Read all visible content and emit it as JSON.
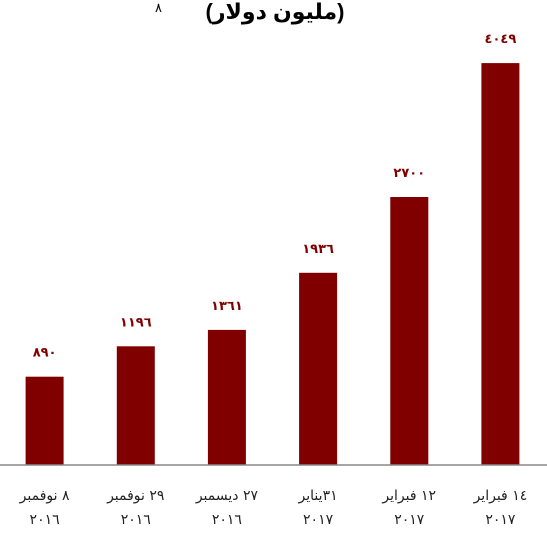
{
  "chart_data": {
    "type": "bar",
    "title": "(مليون دولار)",
    "title_note": "٨",
    "categories": [
      {
        "line1": "٨ نوفمبر",
        "line2": "٢٠١٦"
      },
      {
        "line1": "٢٩ نوفمبر",
        "line2": "٢٠١٦"
      },
      {
        "line1": "٢٧ ديسمبر",
        "line2": "٢٠١٦"
      },
      {
        "line1": "٣١يناير",
        "line2": "٢٠١٧"
      },
      {
        "line1": "١٢ فبراير",
        "line2": "٢٠١٧"
      },
      {
        "line1": "١٤ فبراير",
        "line2": "٢٠١٧"
      }
    ],
    "values": [
      890,
      1196,
      1361,
      1936,
      2700,
      4049
    ],
    "value_labels": [
      "٨٩٠",
      "١١٩٦",
      "١٣٦١",
      "١٩٣٦",
      "٢٧٠٠",
      "٤٠٤٩"
    ],
    "ylim": [
      0,
      4100
    ],
    "grid": false,
    "legend": "none",
    "colors": {
      "bar": "#800000",
      "value_label": "#800000",
      "axis": "#888888"
    }
  }
}
